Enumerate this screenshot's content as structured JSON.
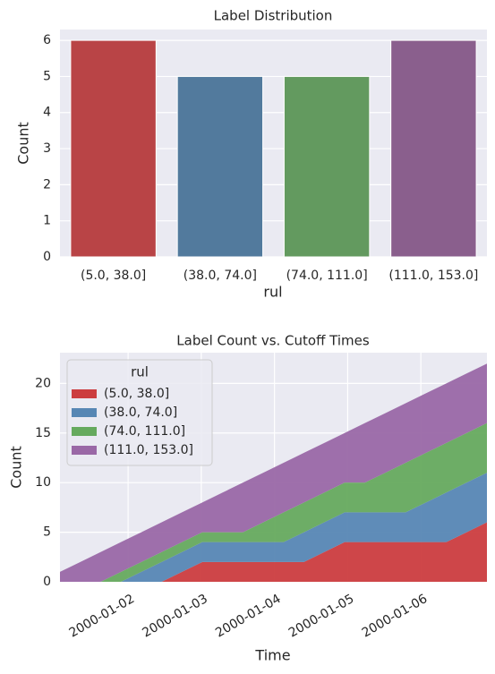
{
  "chart_data": [
    {
      "type": "bar",
      "title": "Label Distribution",
      "xlabel": "rul",
      "ylabel": "Count",
      "categories": [
        "(5.0, 38.0]",
        "(38.0, 74.0]",
        "(74.0, 111.0]",
        "(111.0, 153.0]"
      ],
      "values": [
        6,
        5,
        5,
        6
      ],
      "colors": [
        "#b94446",
        "#527a9d",
        "#639a5f",
        "#8a5f8d"
      ],
      "ylim": [
        0,
        6.3
      ],
      "yticks": [
        0,
        1,
        2,
        3,
        4,
        5,
        6
      ],
      "grid": true
    },
    {
      "type": "area",
      "stacked": true,
      "title": "Label Count vs. Cutoff Times",
      "xlabel": "Time",
      "ylabel": "Count",
      "legend_title": "rul",
      "legend": "upper left",
      "x": [
        "2000-01-01T01:40",
        "2000-01-01T08:20",
        "2000-01-01T15:00",
        "2000-01-01T21:40",
        "2000-01-02T04:20",
        "2000-01-02T11:00",
        "2000-01-02T17:40",
        "2000-01-03T00:20",
        "2000-01-03T07:00",
        "2000-01-03T13:40",
        "2000-01-03T20:20",
        "2000-01-04T03:00",
        "2000-01-04T09:40",
        "2000-01-04T16:20",
        "2000-01-04T23:00",
        "2000-01-05T05:40",
        "2000-01-05T12:20",
        "2000-01-05T19:00",
        "2000-01-06T01:40",
        "2000-01-06T08:20",
        "2000-01-06T15:00",
        "2000-01-06T21:40"
      ],
      "series": [
        {
          "name": "(5.0, 38.0]",
          "color": "#cc3d3f",
          "values": [
            0,
            0,
            0,
            0,
            0,
            0,
            1,
            2,
            2,
            2,
            2,
            2,
            2,
            3,
            4,
            4,
            4,
            4,
            4,
            4,
            5,
            6
          ]
        },
        {
          "name": "(38.0, 74.0]",
          "color": "#5787b4",
          "values": [
            0,
            0,
            0,
            0,
            1,
            2,
            2,
            2,
            2,
            2,
            2,
            2,
            3,
            3,
            3,
            3,
            3,
            3,
            4,
            5,
            5,
            5
          ]
        },
        {
          "name": "(74.0, 111.0]",
          "color": "#66aa5e",
          "values": [
            0,
            0,
            0,
            1,
            1,
            1,
            1,
            1,
            1,
            1,
            2,
            3,
            3,
            3,
            3,
            3,
            4,
            5,
            5,
            5,
            5,
            5
          ]
        },
        {
          "name": "(111.0, 153.0]",
          "color": "#9a68a6",
          "values": [
            1,
            2,
            3,
            3,
            3,
            3,
            3,
            3,
            4,
            5,
            5,
            5,
            5,
            5,
            5,
            6,
            6,
            6,
            6,
            6,
            6,
            6
          ]
        }
      ],
      "xlim": [
        "2000-01-01T01:40",
        "2000-01-06T21:40"
      ],
      "xticks": [
        "2000-01-02",
        "2000-01-03",
        "2000-01-04",
        "2000-01-05",
        "2000-01-06"
      ],
      "ylim": [
        0,
        23.1
      ],
      "yticks": [
        0,
        5,
        10,
        15,
        20
      ],
      "grid": true
    }
  ]
}
